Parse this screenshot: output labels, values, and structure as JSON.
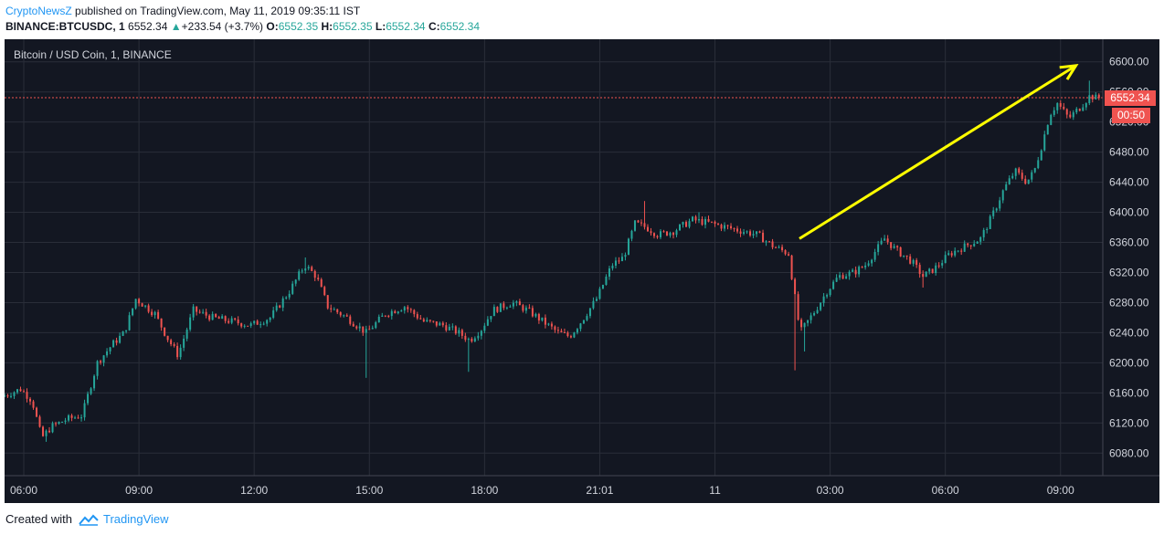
{
  "header": {
    "author": "CryptoNewsZ",
    "published_text": " published on TradingView.com, May 11, 2019 09:35:11 IST",
    "symbol": "BINANCE:BTCUSDC, 1",
    "last_price": "6552.34",
    "change": "+233.54 (+3.7%)",
    "o_label": "O:",
    "o_value": "6552.35",
    "h_label": "H:",
    "h_value": "6552.35",
    "l_label": "L:",
    "l_value": "6552.34",
    "c_label": "C:",
    "c_value": "6552.34"
  },
  "footer": {
    "created_with": "Created with",
    "brand": "TradingView"
  },
  "colors": {
    "background": "#131722",
    "grid": "#2a2e39",
    "up": "#26a69a",
    "down": "#ef5350",
    "arrow": "#ffff00",
    "price_label_bg": "#ef5350",
    "axis_text": "#d1d4dc"
  },
  "chart_data": {
    "type": "candlestick",
    "title": "Bitcoin / USD Coin, 1, BINANCE",
    "ylim": [
      6050,
      6630
    ],
    "y_ticks": [
      6080,
      6120,
      6160,
      6200,
      6240,
      6280,
      6320,
      6360,
      6400,
      6440,
      6480,
      6520,
      6560,
      6600
    ],
    "y_tick_labels": [
      "6080.00",
      "6120.00",
      "6160.00",
      "6200.00",
      "6240.00",
      "6280.00",
      "6320.00",
      "6360.00",
      "6400.00",
      "6440.00",
      "6480.00",
      "6520.00",
      "6560.00",
      "6600.00"
    ],
    "x_tick_labels": [
      "06:00",
      "09:00",
      "12:00",
      "15:00",
      "18:00",
      "21:01",
      "11",
      "03:00",
      "06:00",
      "09:00"
    ],
    "x_tick_hours": [
      6,
      9,
      12,
      15,
      18,
      21,
      24,
      27,
      30,
      33
    ],
    "x_range_hours": [
      5.5,
      34.1
    ],
    "grid": true,
    "current_price": 6552.34,
    "current_price_label": "6552.34",
    "countdown_label": "00:50",
    "price_path": [
      [
        5.5,
        6155
      ],
      [
        6.0,
        6165
      ],
      [
        6.3,
        6150
      ],
      [
        6.55,
        6100
      ],
      [
        6.8,
        6115
      ],
      [
        7.2,
        6125
      ],
      [
        7.6,
        6130
      ],
      [
        8.0,
        6200
      ],
      [
        8.4,
        6225
      ],
      [
        8.7,
        6240
      ],
      [
        9.0,
        6285
      ],
      [
        9.5,
        6265
      ],
      [
        9.8,
        6235
      ],
      [
        10.1,
        6210
      ],
      [
        10.5,
        6270
      ],
      [
        11.0,
        6260
      ],
      [
        11.5,
        6255
      ],
      [
        12.0,
        6250
      ],
      [
        12.5,
        6260
      ],
      [
        13.0,
        6295
      ],
      [
        13.4,
        6330
      ],
      [
        13.7,
        6315
      ],
      [
        14.0,
        6275
      ],
      [
        14.5,
        6260
      ],
      [
        15.0,
        6240
      ],
      [
        15.5,
        6265
      ],
      [
        16.0,
        6275
      ],
      [
        16.5,
        6255
      ],
      [
        17.0,
        6250
      ],
      [
        17.4,
        6240
      ],
      [
        17.7,
        6230
      ],
      [
        18.0,
        6245
      ],
      [
        18.3,
        6270
      ],
      [
        18.8,
        6280
      ],
      [
        19.2,
        6270
      ],
      [
        19.6,
        6255
      ],
      [
        20.0,
        6240
      ],
      [
        20.3,
        6235
      ],
      [
        20.6,
        6255
      ],
      [
        21.0,
        6285
      ],
      [
        21.4,
        6330
      ],
      [
        21.7,
        6340
      ],
      [
        22.0,
        6385
      ],
      [
        22.3,
        6380
      ],
      [
        22.6,
        6370
      ],
      [
        23.0,
        6375
      ],
      [
        23.5,
        6390
      ],
      [
        24.0,
        6385
      ],
      [
        24.4,
        6380
      ],
      [
        24.8,
        6375
      ],
      [
        25.2,
        6370
      ],
      [
        25.6,
        6355
      ],
      [
        26.0,
        6345
      ],
      [
        26.3,
        6240
      ],
      [
        26.7,
        6270
      ],
      [
        27.0,
        6295
      ],
      [
        27.3,
        6315
      ],
      [
        27.7,
        6320
      ],
      [
        28.0,
        6330
      ],
      [
        28.5,
        6365
      ],
      [
        28.8,
        6350
      ],
      [
        29.2,
        6335
      ],
      [
        29.5,
        6315
      ],
      [
        29.8,
        6325
      ],
      [
        30.2,
        6345
      ],
      [
        30.6,
        6355
      ],
      [
        31.0,
        6365
      ],
      [
        31.3,
        6395
      ],
      [
        31.6,
        6430
      ],
      [
        31.9,
        6455
      ],
      [
        32.2,
        6440
      ],
      [
        32.4,
        6455
      ],
      [
        32.6,
        6490
      ],
      [
        32.8,
        6530
      ],
      [
        33.0,
        6545
      ],
      [
        33.3,
        6525
      ],
      [
        33.6,
        6540
      ],
      [
        33.85,
        6555
      ],
      [
        34.0,
        6552
      ]
    ],
    "spike_lows": [
      [
        6.6,
        6095
      ],
      [
        14.9,
        6180
      ],
      [
        17.6,
        6188
      ],
      [
        26.1,
        6190
      ],
      [
        26.35,
        6215
      ],
      [
        29.45,
        6300
      ]
    ],
    "spike_highs": [
      [
        13.35,
        6340
      ],
      [
        22.15,
        6415
      ],
      [
        23.6,
        6400
      ],
      [
        33.75,
        6575
      ]
    ],
    "annotation_arrow": {
      "from": [
        26.2,
        6365
      ],
      "to": [
        33.4,
        6595
      ]
    }
  }
}
